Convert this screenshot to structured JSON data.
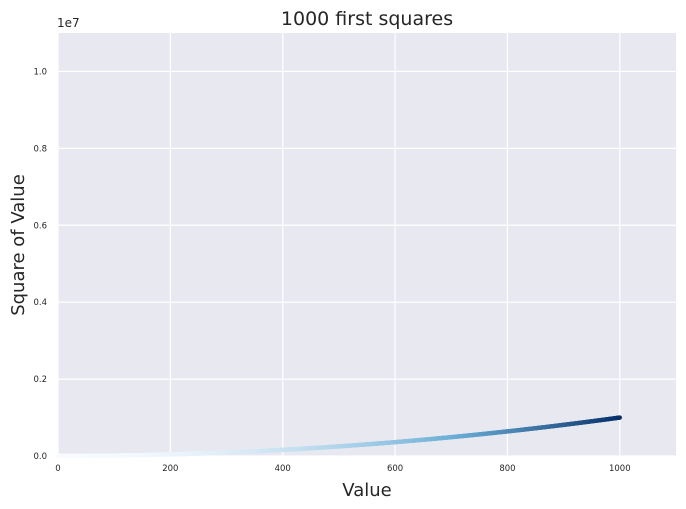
{
  "chart_data": {
    "type": "scatter",
    "title": "1000 first squares",
    "xlabel": "Value",
    "ylabel": "Square of Value",
    "xlim": [
      0,
      1100
    ],
    "ylim": [
      0,
      11000000
    ],
    "x_ticks": [
      0,
      200,
      400,
      600,
      800,
      1000
    ],
    "x_tick_labels": [
      "0",
      "200",
      "400",
      "600",
      "800",
      "1000"
    ],
    "y_ticks": [
      0,
      2000000,
      4000000,
      6000000,
      8000000,
      10000000
    ],
    "y_tick_labels": [
      "0.0",
      "0.2",
      "0.4",
      "0.6",
      "0.8",
      "1.0"
    ],
    "y_offset_label": "1e7",
    "grid": true,
    "colormap": "Blues",
    "series": [
      {
        "name": "squares",
        "x_start": 1,
        "x_end": 1000,
        "x_step": 1,
        "y_formula": "x^2",
        "color_by": "y"
      }
    ],
    "colors": {
      "background": "#e8e9f0",
      "grid": "#ffffff",
      "cmap_low": "#f7fbff",
      "cmap_mid": "#6baed6",
      "cmap_high": "#08306b"
    }
  }
}
